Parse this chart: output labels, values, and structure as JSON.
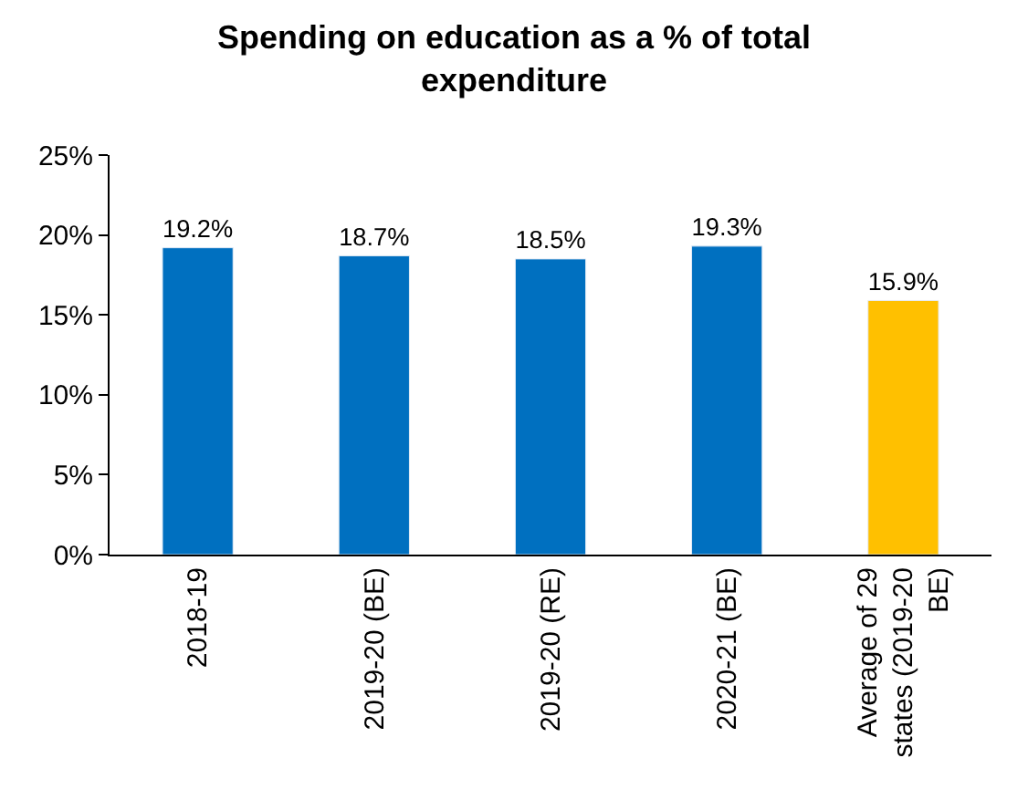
{
  "chart_data": {
    "type": "bar",
    "title": "Spending on education as a % of total expenditure",
    "categories": [
      "2018-19",
      "2019-20 (BE)",
      "2019-20 (RE)",
      "2020-21 (BE)",
      "Average of 29 states (2019-20 BE)"
    ],
    "values": [
      19.2,
      18.7,
      18.5,
      19.3,
      15.9
    ],
    "colors": [
      "#0070c0",
      "#0070c0",
      "#0070c0",
      "#0070c0",
      "#ffc000"
    ],
    "value_labels": [
      "19.2%",
      "18.7%",
      "18.5%",
      "19.3%",
      "15.9%"
    ],
    "ylim": [
      0,
      25
    ],
    "yticks": [
      {
        "value": 0,
        "label": "0%"
      },
      {
        "value": 5,
        "label": "5%"
      },
      {
        "value": 10,
        "label": "10%"
      },
      {
        "value": 15,
        "label": "15%"
      },
      {
        "value": 20,
        "label": "20%"
      },
      {
        "value": 25,
        "label": "25%"
      }
    ],
    "legend": false
  }
}
